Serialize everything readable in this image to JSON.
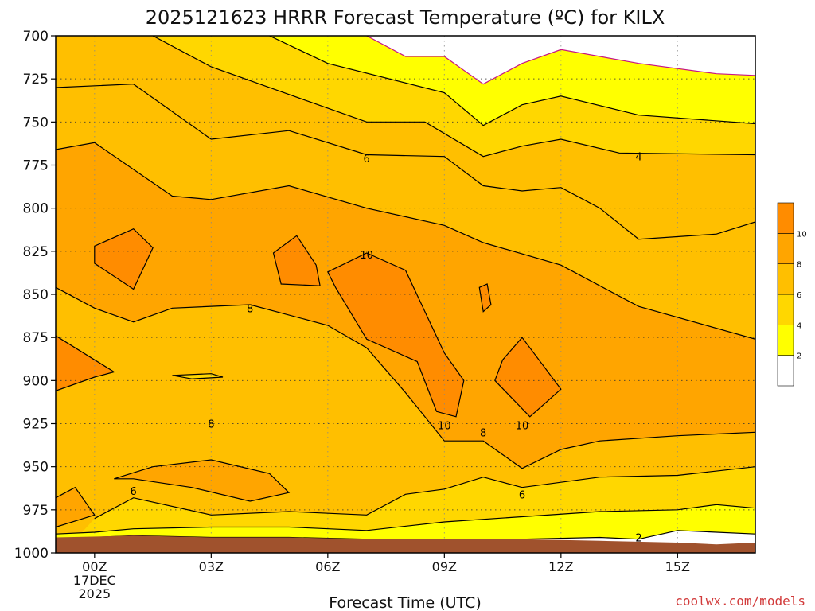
{
  "chart_data": {
    "type": "heatmap",
    "title": "2025121623 HRRR Forecast Temperature (ºC) for KILX",
    "xlabel": "Forecast Time (UTC)",
    "x_ticks": [
      {
        "hour": 0,
        "label": "00Z",
        "sub": [
          "17DEC",
          "2025"
        ]
      },
      {
        "hour": 3,
        "label": "03Z",
        "sub": []
      },
      {
        "hour": 6,
        "label": "06Z",
        "sub": []
      },
      {
        "hour": 9,
        "label": "09Z",
        "sub": []
      },
      {
        "hour": 12,
        "label": "12Z",
        "sub": []
      },
      {
        "hour": 15,
        "label": "15Z",
        "sub": []
      }
    ],
    "xlim": [
      -1,
      17
    ],
    "y_ticks": [
      700,
      725,
      750,
      775,
      800,
      825,
      850,
      875,
      900,
      925,
      950,
      975,
      1000
    ],
    "ylim": [
      700,
      1000
    ],
    "grid": true,
    "colorbar": {
      "levels": [
        0,
        2,
        4,
        6,
        8,
        10,
        12
      ],
      "colors": [
        "#ffffff",
        "#ffff00",
        "#ffd700",
        "#ffbf00",
        "#ffa500",
        "#ff8c00"
      ],
      "labels": [
        "2",
        "4",
        "6",
        "8",
        "10"
      ]
    },
    "ground_color": "#a0522d",
    "surface_pressure": [
      [
        -1,
        991
      ],
      [
        1,
        990
      ],
      [
        3,
        991
      ],
      [
        5,
        991
      ],
      [
        7,
        992
      ],
      [
        9,
        992
      ],
      [
        11,
        992
      ],
      [
        13,
        993
      ],
      [
        15,
        994
      ],
      [
        16,
        995
      ],
      [
        17,
        994
      ]
    ],
    "contours": [
      {
        "value": 0,
        "level_color": "#c71585",
        "points": [
          [
            7,
            700
          ],
          [
            8,
            712
          ],
          [
            9,
            712
          ],
          [
            10,
            728
          ],
          [
            11,
            716
          ],
          [
            12,
            708
          ],
          [
            14,
            716
          ],
          [
            16,
            722
          ],
          [
            17,
            723
          ]
        ]
      },
      {
        "value": 2,
        "points": [
          [
            4.5,
            700
          ],
          [
            6,
            716
          ],
          [
            9,
            733
          ],
          [
            10,
            752
          ],
          [
            11,
            740
          ],
          [
            12,
            735
          ],
          [
            14,
            746
          ],
          [
            17,
            751
          ]
        ]
      },
      {
        "value": 2,
        "points": [
          [
            -1,
            992
          ],
          [
            1,
            990
          ],
          [
            3,
            991
          ],
          [
            5,
            991
          ],
          [
            7,
            992
          ],
          [
            9,
            992
          ],
          [
            11,
            992
          ],
          [
            13,
            991
          ],
          [
            14,
            992
          ],
          [
            15,
            987
          ],
          [
            17,
            989
          ]
        ]
      },
      {
        "value": 4,
        "points": [
          [
            1.5,
            700
          ],
          [
            3,
            718
          ],
          [
            5,
            734
          ],
          [
            7,
            750
          ],
          [
            8.5,
            750
          ],
          [
            10,
            770
          ],
          [
            11,
            764
          ],
          [
            12,
            760
          ],
          [
            13.5,
            768
          ],
          [
            17,
            769
          ]
        ]
      },
      {
        "value": 4,
        "points": [
          [
            -1,
            989
          ],
          [
            0,
            988
          ],
          [
            1,
            986
          ],
          [
            3,
            985
          ],
          [
            5,
            985
          ],
          [
            7,
            987
          ],
          [
            9,
            982
          ],
          [
            11,
            979
          ],
          [
            13,
            976
          ],
          [
            15,
            975
          ],
          [
            16,
            972
          ],
          [
            17,
            974
          ]
        ]
      },
      {
        "value": 6,
        "points": [
          [
            -1,
            730
          ],
          [
            1,
            728
          ],
          [
            3,
            760
          ],
          [
            5,
            755
          ],
          [
            7,
            769
          ],
          [
            9,
            770
          ],
          [
            10,
            787
          ],
          [
            11,
            790
          ],
          [
            12,
            788
          ],
          [
            13,
            800
          ],
          [
            14,
            818
          ],
          [
            16,
            815
          ],
          [
            17,
            808
          ]
        ]
      },
      {
        "value": 6,
        "points": [
          [
            0,
            980
          ],
          [
            1,
            968
          ],
          [
            3,
            978
          ],
          [
            5,
            976
          ],
          [
            7,
            978
          ],
          [
            8,
            966
          ],
          [
            9,
            963
          ],
          [
            10,
            956
          ],
          [
            11,
            962
          ],
          [
            13,
            956
          ],
          [
            15,
            955
          ],
          [
            17,
            950
          ]
        ]
      },
      {
        "value": 8,
        "points": [
          [
            -1,
            766
          ],
          [
            0,
            762
          ],
          [
            2,
            793
          ],
          [
            3,
            795
          ],
          [
            5,
            787
          ],
          [
            7,
            800
          ],
          [
            9,
            810
          ],
          [
            10,
            820
          ],
          [
            12,
            833
          ],
          [
            14,
            857
          ],
          [
            17,
            876
          ]
        ]
      },
      {
        "value": 8,
        "points": [
          [
            -1,
            846
          ],
          [
            0,
            858
          ],
          [
            1,
            866
          ],
          [
            2,
            858
          ],
          [
            4,
            856
          ],
          [
            6,
            868
          ],
          [
            7,
            881
          ],
          [
            8,
            907
          ],
          [
            9,
            935
          ],
          [
            10,
            935
          ],
          [
            11,
            951
          ],
          [
            12,
            940
          ],
          [
            13,
            935
          ],
          [
            15,
            932
          ],
          [
            17,
            930
          ]
        ]
      },
      {
        "value": 8,
        "points": [
          [
            0.5,
            957
          ],
          [
            1.5,
            950
          ],
          [
            3,
            946
          ],
          [
            4.5,
            954
          ],
          [
            5,
            965
          ],
          [
            4,
            970
          ],
          [
            2.5,
            962
          ],
          [
            1,
            957
          ]
        ],
        "closed": true
      },
      {
        "value": 8,
        "points": [
          [
            -1,
            968
          ],
          [
            -0.5,
            962
          ],
          [
            0,
            978
          ],
          [
            -1,
            985
          ]
        ]
      },
      {
        "value": 10,
        "points": [
          [
            0,
            822
          ],
          [
            1,
            812
          ],
          [
            1.5,
            823
          ],
          [
            1,
            847
          ],
          [
            0,
            832
          ]
        ],
        "closed": true
      },
      {
        "value": 10,
        "points": [
          [
            4.6,
            826
          ],
          [
            5.2,
            816
          ],
          [
            5.7,
            833
          ],
          [
            5.8,
            845
          ],
          [
            4.8,
            844
          ]
        ],
        "closed": true
      },
      {
        "value": 10,
        "points": [
          [
            6,
            837
          ],
          [
            7,
            826
          ],
          [
            8,
            836
          ],
          [
            8.5,
            860
          ],
          [
            9,
            884
          ],
          [
            9.5,
            900
          ],
          [
            9.3,
            921
          ],
          [
            8.8,
            918
          ],
          [
            8.3,
            889
          ],
          [
            7,
            876
          ],
          [
            6.2,
            846
          ]
        ],
        "closed": true
      },
      {
        "value": 10,
        "points": [
          [
            10.5,
            888
          ],
          [
            11,
            875
          ],
          [
            12,
            905
          ],
          [
            11.2,
            921
          ],
          [
            10.3,
            900
          ]
        ],
        "closed": true
      },
      {
        "value": 10,
        "points": [
          [
            9.9,
            846
          ],
          [
            10.1,
            844
          ],
          [
            10.2,
            856
          ],
          [
            10.0,
            860
          ]
        ],
        "closed": true
      },
      {
        "value": 6,
        "points": [
          [
            -1,
            906
          ],
          [
            0,
            898
          ],
          [
            0.5,
            895
          ],
          [
            -1,
            874
          ]
        ]
      },
      {
        "value": 6,
        "points": [
          [
            2,
            897
          ],
          [
            3,
            896
          ],
          [
            3.3,
            898
          ],
          [
            2.5,
            899
          ]
        ],
        "closed": true
      }
    ],
    "contour_labels": [
      {
        "text": "6",
        "x": 7,
        "y": 771
      },
      {
        "text": "4",
        "x": 14,
        "y": 770
      },
      {
        "text": "10",
        "x": 7,
        "y": 827
      },
      {
        "text": "8",
        "x": 4,
        "y": 858
      },
      {
        "text": "8",
        "x": 3,
        "y": 925
      },
      {
        "text": "10",
        "x": 9,
        "y": 926
      },
      {
        "text": "8",
        "x": 10,
        "y": 930
      },
      {
        "text": "10",
        "x": 11,
        "y": 926
      },
      {
        "text": "6",
        "x": 1,
        "y": 964
      },
      {
        "text": "6",
        "x": 11,
        "y": 966
      },
      {
        "text": "2",
        "x": 14,
        "y": 991
      }
    ]
  },
  "credit": "coolwx.com/models"
}
